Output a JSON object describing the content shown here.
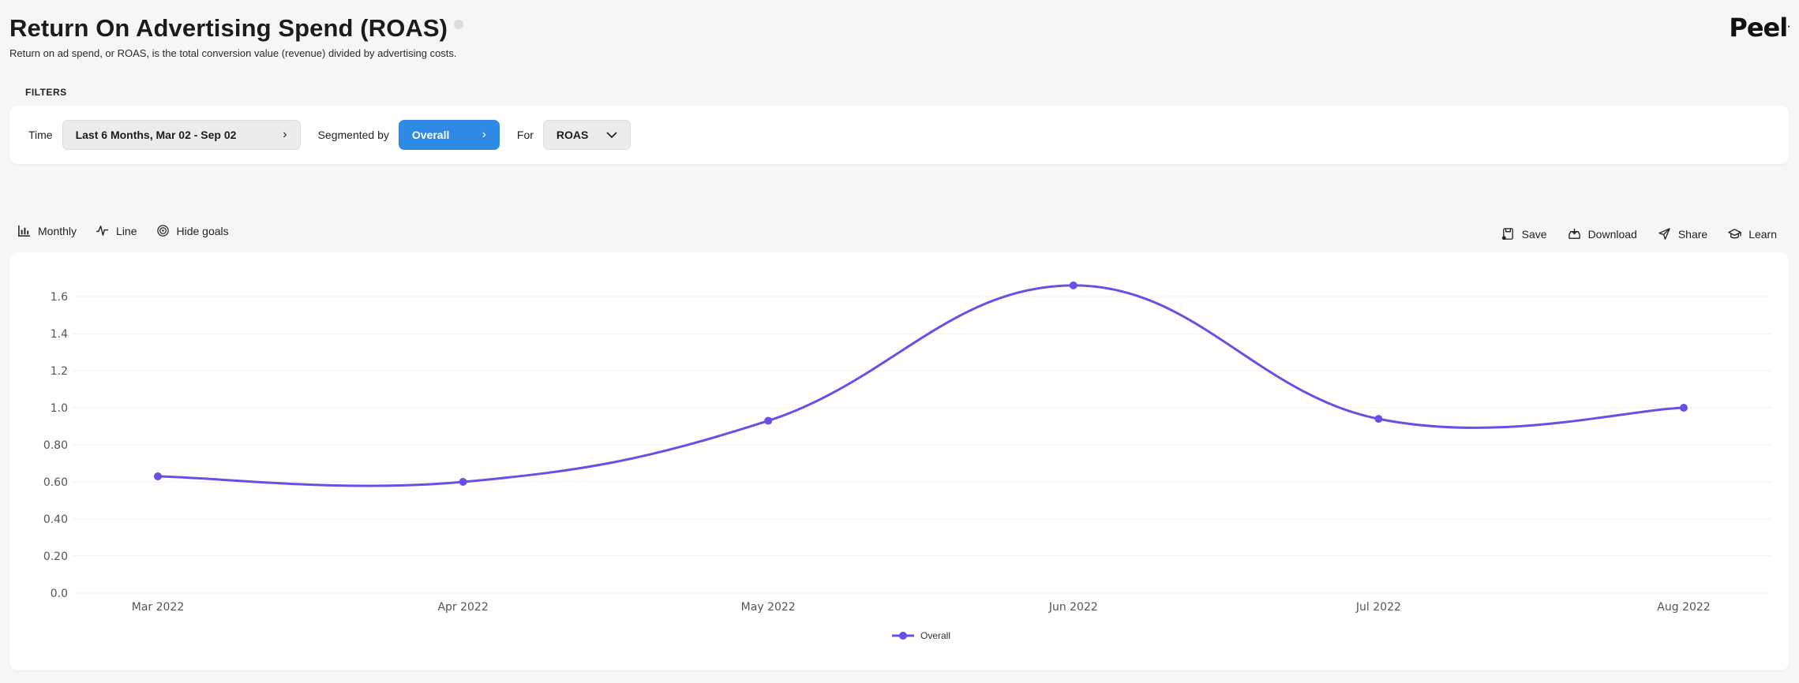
{
  "header": {
    "title": "Return On Advertising Spend (ROAS)",
    "subtitle": "Return on ad spend, or ROAS, is the total conversion value (revenue) divided by advertising costs.",
    "logo": "Peel",
    "logo_mark": "."
  },
  "filters": {
    "section_label": "FILTERS",
    "time_label": "Time",
    "time_value": "Last 6 Months, Mar 02 - Sep 02",
    "segmented_label": "Segmented by",
    "segmented_value": "Overall",
    "for_label": "For",
    "for_value": "ROAS"
  },
  "toolbar": {
    "monthly": "Monthly",
    "line": "Line",
    "hide_goals": "Hide goals",
    "save": "Save",
    "download": "Download",
    "share": "Share",
    "learn": "Learn"
  },
  "colors": {
    "accent": "#2f8ae6",
    "series": "#6b4ee6"
  },
  "chart_data": {
    "type": "line",
    "categories": [
      "Mar 2022",
      "Apr 2022",
      "May 2022",
      "Jun 2022",
      "Jul 2022",
      "Aug 2022"
    ],
    "series": [
      {
        "name": "Overall",
        "values": [
          0.63,
          0.6,
          0.93,
          1.66,
          0.94,
          1.0
        ]
      }
    ],
    "y_ticks": [
      "0.0",
      "0.20",
      "0.40",
      "0.60",
      "0.80",
      "1.0",
      "1.2",
      "1.4",
      "1.6"
    ],
    "ylim": [
      0,
      1.6
    ],
    "grid": true,
    "legend_position": "bottom"
  }
}
